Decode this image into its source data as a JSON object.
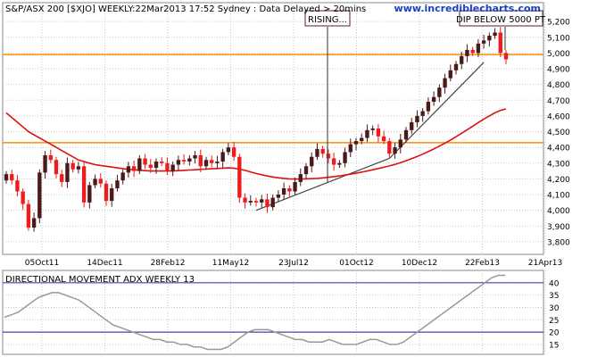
{
  "header": {
    "title": "S&P/ASX 200 [$XJO] WEEKLY:22Mar2013 17:52 Sydney : Data Delayed > 20mins",
    "watermark": "www.incrediblecharts.com"
  },
  "annotations": {
    "rising": "RISING...",
    "dip": "DIP BELOW 5000 PT"
  },
  "colors": {
    "up": "#4a1a1a",
    "down": "#ee1c1c",
    "ma": "#dd1111",
    "hline": "#ff8c00",
    "trend": "#444444",
    "adx": "#999999",
    "adx_ref": "#4444aa",
    "grid": "#c8c8c8",
    "watermark": "#1a3fc4"
  },
  "chart_data": [
    {
      "type": "candlestick",
      "title": "S&P/ASX 200 [$XJO] WEEKLY:22Mar2013 17:52 Sydney : Data Delayed > 20mins",
      "x_tick_labels": [
        "05Oct11",
        "14Dec11",
        "28Feb12",
        "11May12",
        "23Jul12",
        "01Oct12",
        "10Dec12",
        "22Feb13",
        "21Apr13"
      ],
      "y_tick_labels": [
        "5,200",
        "5,100",
        "5,000",
        "4,900",
        "4,800",
        "4,700",
        "4,600",
        "4,500",
        "4,400",
        "4,300",
        "4,200",
        "4,100",
        "4,000",
        "3,900",
        "3,800"
      ],
      "y_ticks": [
        5200,
        5100,
        5000,
        4900,
        4800,
        4700,
        4600,
        4500,
        4400,
        4300,
        4200,
        4100,
        4000,
        3900,
        3800
      ],
      "ylim": [
        3720,
        5320
      ],
      "horizontal_lines": [
        4990,
        4430
      ],
      "close": [
        4230,
        4190,
        4120,
        4040,
        3890,
        3950,
        4240,
        4350,
        4320,
        4230,
        4180,
        4300,
        4260,
        4280,
        4050,
        4160,
        4200,
        4170,
        4060,
        4140,
        4190,
        4240,
        4280,
        4250,
        4330,
        4290,
        4270,
        4310,
        4300,
        4250,
        4290,
        4320,
        4310,
        4330,
        4350,
        4280,
        4320,
        4300,
        4310,
        4370,
        4400,
        4340,
        4080,
        4050,
        4060,
        4050,
        4070,
        4020,
        4080,
        4100,
        4140,
        4120,
        4180,
        4230,
        4280,
        4340,
        4390,
        4360,
        4330,
        4290,
        4300,
        4370,
        4420,
        4440,
        4460,
        4510,
        4520,
        4470,
        4440,
        4360,
        4400,
        4450,
        4510,
        4560,
        4600,
        4630,
        4690,
        4720,
        4780,
        4840,
        4890,
        4930,
        4980,
        5020,
        5000,
        5060,
        5080,
        5110,
        5130,
        5000,
        4960
      ],
      "ma_line": [
        4620,
        4590,
        4560,
        4530,
        4500,
        4480,
        4460,
        4440,
        4420,
        4400,
        4380,
        4360,
        4340,
        4320,
        4310,
        4300,
        4290,
        4285,
        4280,
        4275,
        4270,
        4265,
        4260,
        4258,
        4255,
        4252,
        4250,
        4250,
        4250,
        4250,
        4250,
        4252,
        4254,
        4256,
        4258,
        4260,
        4262,
        4264,
        4266,
        4268,
        4270,
        4268,
        4262,
        4254,
        4244,
        4234,
        4226,
        4218,
        4212,
        4207,
        4203,
        4200,
        4199,
        4199,
        4200,
        4201,
        4203,
        4206,
        4210,
        4214,
        4219,
        4224,
        4230,
        4236,
        4243,
        4250,
        4258,
        4266,
        4274,
        4282,
        4292,
        4303,
        4315,
        4328,
        4342,
        4357,
        4373,
        4390,
        4408,
        4427,
        4447,
        4468,
        4490,
        4512,
        4535,
        4558,
        4580,
        4600,
        4620,
        4635,
        4645
      ],
      "annotation_rising": "RISING...",
      "annotation_dip": "DIP BELOW 5000 PT"
    },
    {
      "type": "line",
      "title": "DIRECTIONAL MOVEMENT ADX WEEKLY 13",
      "y_tick_labels": [
        "40",
        "35",
        "30",
        "25",
        "20",
        "15"
      ],
      "y_ticks": [
        40,
        35,
        30,
        25,
        20,
        15
      ],
      "ylim": [
        11,
        45
      ],
      "reference_lines": [
        40,
        20
      ],
      "values": [
        26,
        27,
        28,
        30,
        32,
        34,
        35,
        36,
        36,
        35,
        34,
        33,
        31,
        29,
        27,
        25,
        23,
        22,
        21,
        20,
        19,
        18,
        17,
        17,
        16,
        16,
        15,
        15,
        14,
        14,
        13,
        13,
        13,
        14,
        16,
        18,
        20,
        21,
        21,
        21,
        20,
        19,
        18,
        17,
        17,
        16,
        16,
        16,
        17,
        16,
        15,
        15,
        15,
        16,
        17,
        17,
        16,
        15,
        15,
        16,
        18,
        20,
        22,
        24,
        26,
        28,
        30,
        32,
        34,
        36,
        38,
        40,
        42,
        43,
        43
      ],
      "xlim": [
        0,
        74
      ]
    }
  ]
}
